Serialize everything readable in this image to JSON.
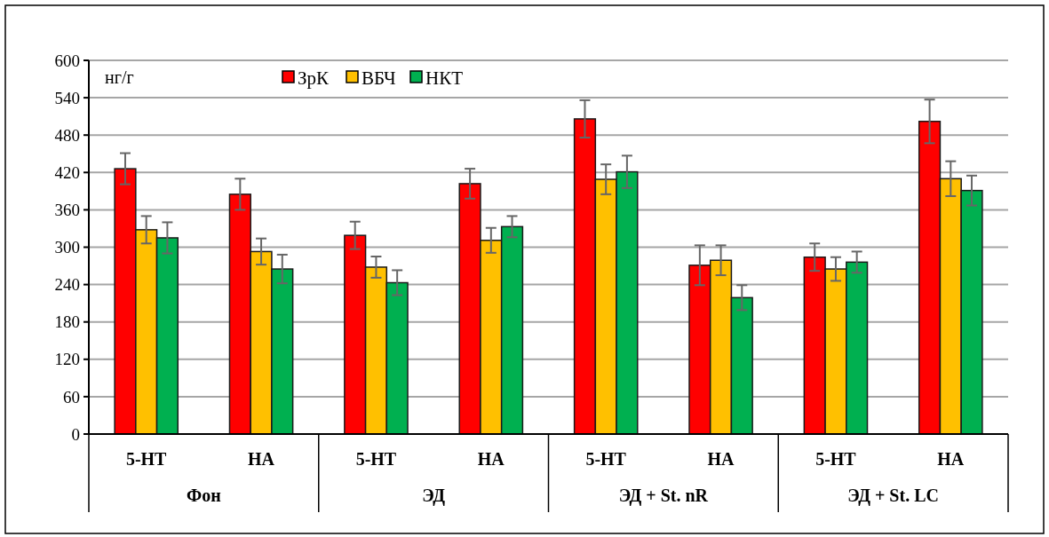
{
  "chart_data": {
    "type": "bar",
    "ylabel": "нг/г",
    "categories": [
      "5-HT",
      "НА",
      "5-HT",
      "НА",
      "5-HT",
      "НА",
      "5-HT",
      "НА"
    ],
    "annotations": [
      "Фон",
      "ЭД",
      "ЭД + St. nR",
      "ЭД + St. LC"
    ],
    "series": [
      {
        "name": "ЗрК",
        "color": "#ff0000",
        "values": [
          426,
          385,
          319,
          402,
          506,
          271,
          284,
          502
        ],
        "errors": [
          25,
          25,
          22,
          24,
          30,
          32,
          22,
          35
        ]
      },
      {
        "name": "ВБЧ",
        "color": "#ffc000",
        "values": [
          328,
          293,
          268,
          311,
          409,
          279,
          265,
          410
        ],
        "errors": [
          22,
          21,
          17,
          20,
          24,
          24,
          19,
          28
        ]
      },
      {
        "name": "НКТ",
        "color": "#00b050",
        "values": [
          315,
          265,
          243,
          333,
          421,
          219,
          276,
          391
        ],
        "errors": [
          25,
          23,
          20,
          17,
          26,
          20,
          17,
          24
        ]
      }
    ],
    "ylim": [
      0,
      600
    ],
    "yticks": [
      0,
      60,
      120,
      180,
      240,
      300,
      360,
      420,
      480,
      540,
      600
    ],
    "grid": "y",
    "legend": "top"
  }
}
